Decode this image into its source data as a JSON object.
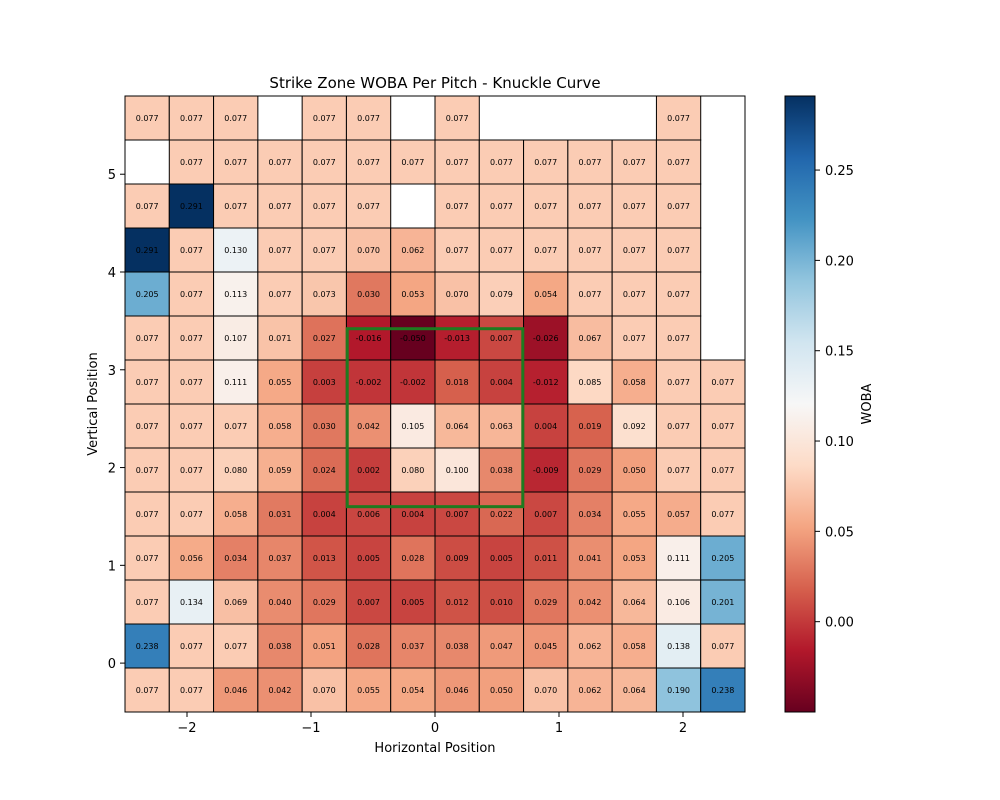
{
  "chart_data": {
    "type": "heatmap",
    "title": "Strike Zone WOBA Per Pitch - Knuckle Curve",
    "xlabel": "Horizontal Position",
    "ylabel": "Vertical Position",
    "colorbar_label": "WOBA",
    "colormap": "RdBu",
    "vmin": -0.05,
    "vmax": 0.291,
    "xlim": [
      -2.5,
      2.5
    ],
    "ylim": [
      -0.5,
      5.8
    ],
    "cell_width": 0.357,
    "cell_height": 0.45,
    "x_ticks": [
      -2,
      -1,
      0,
      1,
      2
    ],
    "x_tick_labels": [
      "−2",
      "−1",
      "0",
      "1",
      "2"
    ],
    "y_ticks": [
      0,
      1,
      2,
      3,
      4,
      5
    ],
    "y_tick_labels": [
      "0",
      "1",
      "2",
      "3",
      "4",
      "5"
    ],
    "colorbar_ticks": [
      0.0,
      0.05,
      0.1,
      0.15,
      0.2,
      0.25
    ],
    "colorbar_tick_labels": [
      "0.00",
      "0.05",
      "0.10",
      "0.15",
      "0.20",
      "0.25"
    ],
    "strike_zone": {
      "x": [
        -0.708,
        0.708
      ],
      "y": [
        1.6,
        3.42
      ],
      "color": "#1f7a1f"
    },
    "row_order": "top-to-bottom",
    "rows": [
      [
        0.077,
        0.077,
        0.077,
        null,
        0.077,
        0.077,
        null,
        0.077,
        null,
        null,
        null,
        null,
        0.077,
        null
      ],
      [
        null,
        0.077,
        0.077,
        0.077,
        0.077,
        0.077,
        0.077,
        0.077,
        0.077,
        0.077,
        0.077,
        0.077,
        0.077,
        null
      ],
      [
        0.077,
        0.291,
        0.077,
        0.077,
        0.077,
        0.077,
        null,
        0.077,
        0.077,
        0.077,
        0.077,
        0.077,
        0.077,
        null
      ],
      [
        0.291,
        0.077,
        0.13,
        0.077,
        0.077,
        0.07,
        0.062,
        0.077,
        0.077,
        0.077,
        0.077,
        0.077,
        0.077,
        null
      ],
      [
        0.205,
        0.077,
        0.113,
        0.077,
        0.073,
        0.03,
        0.053,
        0.07,
        0.079,
        0.054,
        0.077,
        0.077,
        0.077,
        null
      ],
      [
        0.077,
        0.077,
        0.107,
        0.071,
        0.027,
        -0.016,
        -0.05,
        -0.013,
        0.007,
        -0.026,
        0.067,
        0.077,
        0.077,
        null
      ],
      [
        0.077,
        0.077,
        0.111,
        0.055,
        0.003,
        -0.002,
        -0.002,
        0.018,
        0.004,
        -0.012,
        0.085,
        0.058,
        0.077,
        0.077
      ],
      [
        0.077,
        0.077,
        0.077,
        0.058,
        0.03,
        0.042,
        0.105,
        0.064,
        0.063,
        0.004,
        0.019,
        0.092,
        0.077,
        0.077
      ],
      [
        0.077,
        0.077,
        0.08,
        0.059,
        0.024,
        0.002,
        0.08,
        0.1,
        0.038,
        -0.009,
        0.029,
        0.05,
        0.077,
        0.077
      ],
      [
        0.077,
        0.077,
        0.058,
        0.031,
        0.004,
        0.006,
        0.004,
        0.007,
        0.022,
        0.007,
        0.034,
        0.055,
        0.057,
        0.077
      ],
      [
        0.077,
        0.056,
        0.034,
        0.037,
        0.013,
        0.005,
        0.028,
        0.009,
        0.005,
        0.011,
        0.041,
        0.053,
        0.111,
        0.205
      ],
      [
        0.077,
        0.134,
        0.069,
        0.04,
        0.029,
        0.007,
        0.005,
        0.012,
        0.01,
        0.029,
        0.042,
        0.064,
        0.106,
        0.201
      ],
      [
        0.238,
        0.077,
        0.077,
        0.038,
        0.051,
        0.028,
        0.037,
        0.038,
        0.047,
        0.045,
        0.062,
        0.058,
        0.138,
        0.077
      ],
      [
        0.077,
        0.077,
        0.046,
        0.042,
        0.07,
        0.055,
        0.054,
        0.046,
        0.05,
        0.07,
        0.062,
        0.064,
        0.19,
        0.238
      ]
    ],
    "grid": false
  }
}
